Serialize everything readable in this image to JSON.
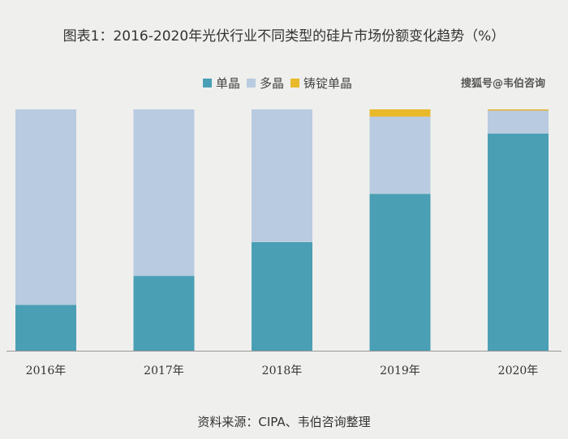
{
  "chart_data": {
    "type": "bar",
    "stacked": true,
    "title": "图表1：2016-2020年光伏行业不同类型的硅片市场份额变化趋势（%）",
    "categories": [
      "2016年",
      "2017年",
      "2018年",
      "2019年",
      "2020年"
    ],
    "series": [
      {
        "name": "单晶",
        "color": "#4a9fb5",
        "values": [
          19,
          31,
          45,
          65,
          90
        ]
      },
      {
        "name": "多晶",
        "color": "#b9cbe0",
        "values": [
          81,
          69,
          55,
          32,
          9.5
        ]
      },
      {
        "name": "铸锭单晶",
        "color": "#e8b92a",
        "values": [
          0,
          0,
          0,
          3,
          0.5
        ]
      }
    ],
    "ylim": [
      0,
      100
    ],
    "grid": false,
    "legend_position": "top",
    "watermark": "搜狐号@韦伯咨询",
    "source": "资料来源：CIPA、韦伯咨询整理"
  }
}
